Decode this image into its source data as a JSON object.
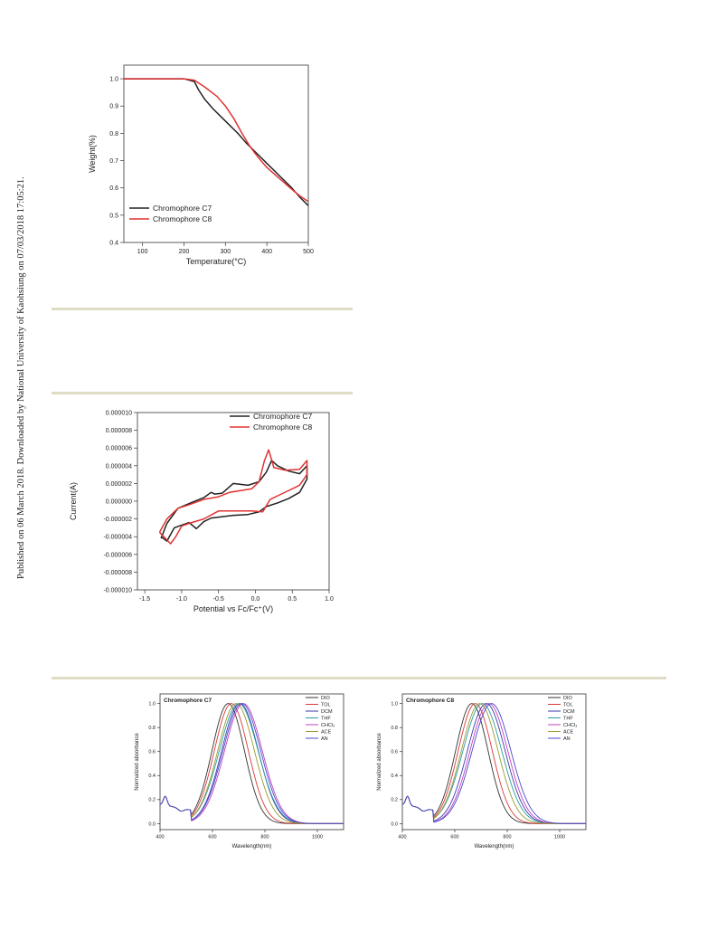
{
  "margin_note": "Published on 06 March 2018. Downloaded by National University of Kaohsiung on 07/03/2018 17:05:21.",
  "colors": {
    "rule": "#dedcc4",
    "c7": "#222222",
    "c8": "#e03232"
  },
  "chart_data": [
    {
      "type": "line",
      "xlabel": "Temperature(°C)",
      "ylabel": "Weight(%)",
      "xlim": [
        55,
        500
      ],
      "ylim": [
        0.4,
        1.05
      ],
      "xticks": [
        100,
        200,
        300,
        400,
        500
      ],
      "yticks": [
        0.4,
        0.5,
        0.6,
        0.7,
        0.8,
        0.9,
        1.0
      ],
      "ytick_labels": [
        "0.4",
        "0.5",
        "0.6",
        "0.7",
        "0.8",
        "0.9",
        "1.0"
      ],
      "legend_position": "bottom-left",
      "series": [
        {
          "name": "Chromophore C7",
          "color": "#222222",
          "x": [
            55,
            150,
            200,
            225,
            235,
            250,
            270,
            300,
            330,
            350,
            380,
            400,
            430,
            460,
            480,
            500
          ],
          "y": [
            1.0,
            1.0,
            1.0,
            0.99,
            0.96,
            0.925,
            0.89,
            0.845,
            0.8,
            0.765,
            0.72,
            0.69,
            0.645,
            0.6,
            0.565,
            0.535
          ]
        },
        {
          "name": "Chromophore C8",
          "color": "#e03232",
          "x": [
            55,
            150,
            200,
            225,
            250,
            280,
            300,
            320,
            340,
            360,
            380,
            400,
            430,
            460,
            480,
            500
          ],
          "y": [
            1.0,
            1.0,
            1.0,
            0.995,
            0.97,
            0.935,
            0.9,
            0.855,
            0.8,
            0.75,
            0.71,
            0.675,
            0.635,
            0.595,
            0.57,
            0.55
          ]
        }
      ]
    },
    {
      "type": "line",
      "xlabel": "Potential vs Fc/Fc⁺(V)",
      "ylabel": "Current(A)",
      "xlim": [
        -1.6,
        1.0
      ],
      "ylim": [
        -1e-05,
        1e-05
      ],
      "xticks": [
        -1.5,
        -1.0,
        -0.5,
        0.0,
        0.5,
        1.0
      ],
      "xtick_labels": [
        "-1.5",
        "-1.0",
        "-0.5",
        "0.0",
        "0.5",
        "1.0"
      ],
      "yticks": [
        -1e-05,
        -8e-06,
        -6e-06,
        -4e-06,
        -2e-06,
        0,
        2e-06,
        4e-06,
        6e-06,
        8e-06,
        1e-05
      ],
      "ytick_labels": [
        "-0.000010",
        "-0.000008",
        "-0.000006",
        "-0.000004",
        "-0.000002",
        "0.000000",
        "0.000002",
        "0.000004",
        "0.000006",
        "0.000008",
        "0.000010"
      ],
      "legend_position": "top-right",
      "series": [
        {
          "name": "Chromophore C7",
          "color": "#222222",
          "x": [
            -1.28,
            -1.2,
            -1.05,
            -0.85,
            -0.7,
            -0.6,
            -0.55,
            -0.45,
            -0.3,
            -0.2,
            -0.1,
            0.05,
            0.15,
            0.22,
            0.3,
            0.45,
            0.6,
            0.7,
            0.7,
            0.6,
            0.45,
            0.3,
            0.15,
            0.05,
            -0.1,
            -0.3,
            -0.5,
            -0.6,
            -0.7,
            -0.8,
            -0.9,
            -1.0,
            -1.1,
            -1.2,
            -1.28
          ],
          "y": [
            -4.2e-06,
            -2.5e-06,
            -8e-07,
            -1e-07,
            4e-07,
            1e-06,
            8e-07,
            9e-07,
            2e-06,
            1.9e-06,
            1.8e-06,
            2.2e-06,
            3.3e-06,
            4.6e-06,
            4e-06,
            3.4e-06,
            3.1e-06,
            4e-06,
            2.5e-06,
            1e-06,
            3e-07,
            -2e-07,
            -6e-07,
            -1.2e-06,
            -1.5e-06,
            -1.6e-06,
            -1.8e-06,
            -1.9e-06,
            -2.3e-06,
            -3.1e-06,
            -2.4e-06,
            -2.7e-06,
            -3e-06,
            -4.5e-06,
            -4e-06
          ]
        },
        {
          "name": "Chromophore C8",
          "color": "#e03232",
          "x": [
            -1.3,
            -1.2,
            -1.05,
            -0.9,
            -0.7,
            -0.5,
            -0.35,
            -0.2,
            -0.05,
            0.05,
            0.12,
            0.18,
            0.25,
            0.4,
            0.6,
            0.7,
            0.7,
            0.6,
            0.45,
            0.3,
            0.2,
            0.1,
            -0.05,
            -0.3,
            -0.5,
            -0.7,
            -0.9,
            -1.0,
            -1.08,
            -1.15,
            -1.3
          ],
          "y": [
            -3.5e-06,
            -2e-06,
            -8e-07,
            -4e-07,
            2e-07,
            5e-07,
            1e-06,
            1.2e-06,
            1.4e-06,
            2.2e-06,
            4.5e-06,
            5.8e-06,
            3.8e-06,
            3.5e-06,
            3.6e-06,
            4.6e-06,
            3e-06,
            1.8e-06,
            1.2e-06,
            6e-07,
            2e-07,
            -1.2e-06,
            -1.1e-06,
            -1.1e-06,
            -1.1e-06,
            -2e-06,
            -2.5e-06,
            -2.8e-06,
            -4e-06,
            -4.8e-06,
            -3.5e-06
          ]
        }
      ]
    },
    {
      "type": "line",
      "title": "Chromophore  C7",
      "xlabel": "Wavelength(nm)",
      "ylabel": "Normalized absorbance",
      "xlim": [
        400,
        1100
      ],
      "ylim": [
        -0.05,
        1.08
      ],
      "xticks": [
        400,
        600,
        800,
        1000
      ],
      "yticks": [
        0.0,
        0.2,
        0.4,
        0.6,
        0.8,
        1.0
      ],
      "ytick_labels": [
        "0.0",
        "0.2",
        "0.4",
        "0.6",
        "0.8",
        "1.0"
      ],
      "legend_position": "top-right",
      "series": [
        {
          "name": "DIO",
          "color": "#333333",
          "peak": 660,
          "width": 62
        },
        {
          "name": "TOL",
          "color": "#d63a3a",
          "peak": 672,
          "width": 65
        },
        {
          "name": "DCM",
          "color": "#3a3aa8",
          "peak": 705,
          "width": 70
        },
        {
          "name": "THF",
          "color": "#2e9aa0",
          "peak": 700,
          "width": 74
        },
        {
          "name": "CHCl₃",
          "color": "#c040c0",
          "peak": 718,
          "width": 72
        },
        {
          "name": "ACE",
          "color": "#9a9a30",
          "peak": 690,
          "width": 70
        },
        {
          "name": "AN",
          "color": "#4848d0",
          "peak": 712,
          "width": 72
        }
      ]
    },
    {
      "type": "line",
      "title": "Chromophore  C8",
      "xlabel": "Wavelength(nm)",
      "ylabel": "Normalized absorbance",
      "xlim": [
        400,
        1100
      ],
      "ylim": [
        -0.05,
        1.08
      ],
      "xticks": [
        400,
        600,
        800,
        1000
      ],
      "yticks": [
        0.0,
        0.2,
        0.4,
        0.6,
        0.8,
        1.0
      ],
      "ytick_labels": [
        "0.0",
        "0.2",
        "0.4",
        "0.6",
        "0.8",
        "1.0"
      ],
      "legend_position": "top-right",
      "series": [
        {
          "name": "DIO",
          "color": "#333333",
          "peak": 665,
          "width": 62
        },
        {
          "name": "TOL",
          "color": "#d63a3a",
          "peak": 678,
          "width": 65
        },
        {
          "name": "DCM",
          "color": "#3a3aa8",
          "peak": 720,
          "width": 72
        },
        {
          "name": "THF",
          "color": "#2e9aa0",
          "peak": 705,
          "width": 74
        },
        {
          "name": "CHCl₃",
          "color": "#c040c0",
          "peak": 730,
          "width": 72
        },
        {
          "name": "ACE",
          "color": "#9a9a30",
          "peak": 695,
          "width": 70
        },
        {
          "name": "AN",
          "color": "#4848d0",
          "peak": 740,
          "width": 74
        }
      ]
    }
  ]
}
